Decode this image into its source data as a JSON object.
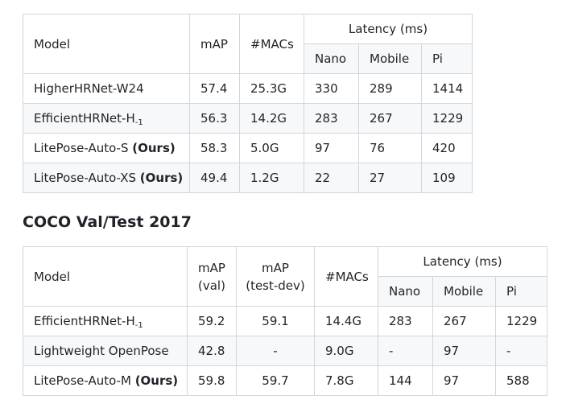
{
  "table1": {
    "headers": {
      "model": "Model",
      "map": "mAP",
      "macs": "#MACs",
      "latency": "Latency (ms)",
      "nano": "Nano",
      "mobile": "Mobile",
      "pi": "Pi"
    },
    "rows": [
      {
        "model": "HigherHRNet-W24",
        "suffix": "",
        "ours": "",
        "map": "57.4",
        "macs": "25.3G",
        "nano": "330",
        "mobile": "289",
        "pi": "1414"
      },
      {
        "model": "EfficientHRNet-H",
        "suffix": "-1",
        "ours": "",
        "map": "56.3",
        "macs": "14.2G",
        "nano": "283",
        "mobile": "267",
        "pi": "1229"
      },
      {
        "model": "LitePose-Auto-S ",
        "suffix": "",
        "ours": "(Ours)",
        "map": "58.3",
        "macs": "5.0G",
        "nano": "97",
        "mobile": "76",
        "pi": "420"
      },
      {
        "model": "LitePose-Auto-XS ",
        "suffix": "",
        "ours": "(Ours)",
        "map": "49.4",
        "macs": "1.2G",
        "nano": "22",
        "mobile": "27",
        "pi": "109"
      }
    ]
  },
  "section_heading": "COCO Val/Test 2017",
  "table2": {
    "headers": {
      "model": "Model",
      "map_val_1": "mAP",
      "map_val_2": "(val)",
      "map_test_1": "mAP",
      "map_test_2": "(test-dev)",
      "macs": "#MACs",
      "latency": "Latency (ms)",
      "nano": "Nano",
      "mobile": "Mobile",
      "pi": "Pi"
    },
    "rows": [
      {
        "model": "EfficientHRNet-H",
        "suffix": "-1",
        "ours": "",
        "map_val": "59.2",
        "map_test": "59.1",
        "macs": "14.4G",
        "nano": "283",
        "mobile": "267",
        "pi": "1229"
      },
      {
        "model": "Lightweight OpenPose",
        "suffix": "",
        "ours": "",
        "map_val": "42.8",
        "map_test": "-",
        "macs": "9.0G",
        "nano": "-",
        "mobile": "97",
        "pi": "-"
      },
      {
        "model": "LitePose-Auto-M ",
        "suffix": "",
        "ours": "(Ours)",
        "map_val": "59.8",
        "map_test": "59.7",
        "macs": "7.8G",
        "nano": "144",
        "mobile": "97",
        "pi": "588"
      }
    ]
  }
}
